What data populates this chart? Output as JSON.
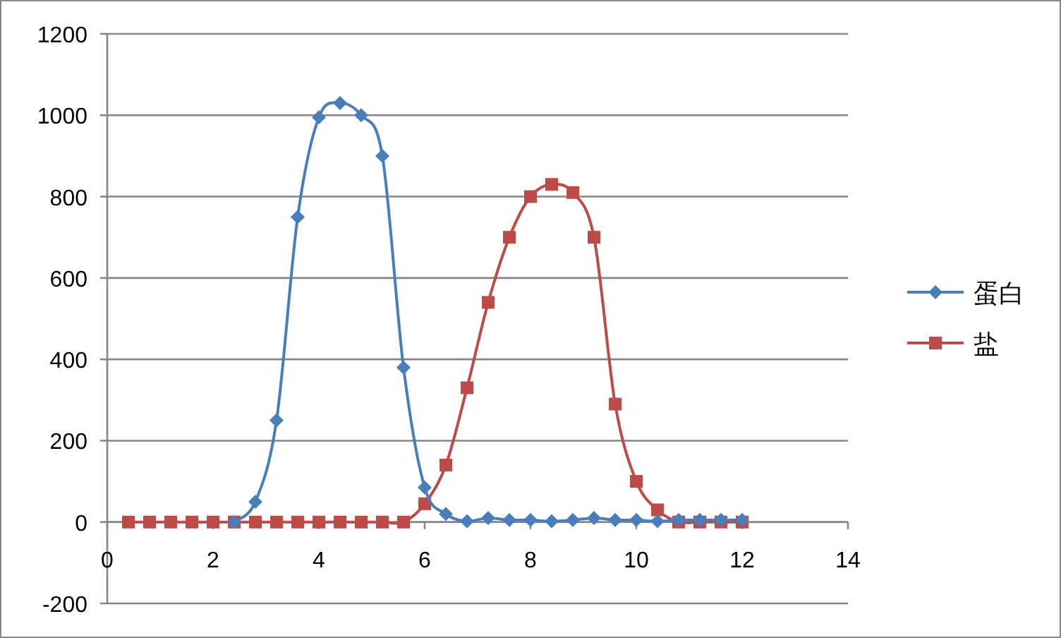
{
  "chart_data": {
    "type": "line",
    "x": [
      0.4,
      0.8,
      1.2,
      1.6,
      2.0,
      2.4,
      2.8,
      3.2,
      3.6,
      4.0,
      4.4,
      4.8,
      5.2,
      5.6,
      6.0,
      6.4,
      6.8,
      7.2,
      7.6,
      8.0,
      8.4,
      8.8,
      9.2,
      9.6,
      10.0,
      10.4,
      10.8,
      11.2,
      11.6,
      12.0
    ],
    "series": [
      {
        "name": "蛋白",
        "color": "#4a7ebb",
        "marker": "diamond",
        "values": [
          null,
          null,
          null,
          null,
          null,
          0,
          50,
          250,
          750,
          995,
          1030,
          1000,
          900,
          380,
          85,
          20,
          2,
          10,
          5,
          5,
          2,
          5,
          10,
          5,
          5,
          2,
          5,
          5,
          5,
          5
        ]
      },
      {
        "name": "盐",
        "color": "#be4b48",
        "marker": "square",
        "values": [
          0,
          0,
          0,
          0,
          0,
          0,
          0,
          0,
          0,
          0,
          0,
          0,
          0,
          0,
          45,
          140,
          330,
          540,
          700,
          800,
          830,
          810,
          700,
          290,
          100,
          30,
          0,
          0,
          0,
          0
        ]
      }
    ],
    "xlim": [
      0,
      14
    ],
    "xticks": [
      0,
      2,
      4,
      6,
      8,
      10,
      12,
      14
    ],
    "ylim": [
      -200,
      1200
    ],
    "yticks": [
      -200,
      0,
      200,
      400,
      600,
      800,
      1000,
      1200
    ],
    "grid": "y",
    "legend": "right",
    "line_style": "solid"
  }
}
